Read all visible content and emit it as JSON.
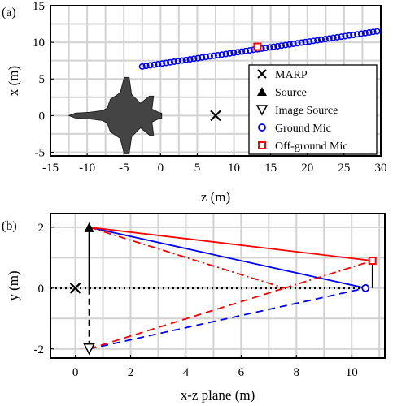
{
  "chart_data": [
    {
      "panel_label": "(a)",
      "type": "scatter",
      "xlabel": "z (m)",
      "ylabel": "x (m)",
      "xlim": [
        -15,
        30
      ],
      "ylim": [
        -5.5,
        15
      ],
      "xticks": [
        -15,
        -10,
        -5,
        0,
        5,
        10,
        15,
        20,
        25,
        30
      ],
      "yticks": [
        -5,
        0,
        5,
        10,
        15
      ],
      "grid": true,
      "legend_position": "lower-right",
      "series": [
        {
          "name": "MARP",
          "marker": "x",
          "color": "#000000",
          "x": [
            7.5
          ],
          "y": [
            0
          ]
        },
        {
          "name": "Source",
          "marker": "triangle-up",
          "color": "#000000",
          "x": [],
          "y": []
        },
        {
          "name": "Image Source",
          "marker": "triangle-down-open",
          "color": "#000000",
          "x": [],
          "y": []
        },
        {
          "name": "Ground Mic",
          "marker": "circle-open",
          "color": "#0000ff",
          "x_range": [
            -2.5,
            29.5
          ],
          "y_range": [
            6.7,
            11.5
          ],
          "count": 60
        },
        {
          "name": "Off-ground Mic",
          "marker": "square-open",
          "color": "#ff0000",
          "x": [
            13.2
          ],
          "y": [
            9.4
          ]
        }
      ],
      "aircraft_icon": "jet-silhouette"
    },
    {
      "panel_label": "(b)",
      "type": "line",
      "xlabel": "x-z plane (m)",
      "ylabel": "y (m)",
      "xlim": [
        -0.9,
        11.2
      ],
      "ylim": [
        -2.3,
        2.45
      ],
      "xticks": [
        0,
        2,
        4,
        6,
        8,
        10
      ],
      "yticks": [
        -2,
        0,
        2
      ],
      "grid": true,
      "points": {
        "marp": {
          "x": 0,
          "y": 0
        },
        "source": {
          "x": 0.5,
          "y": 2
        },
        "image_source": {
          "x": 0.5,
          "y": -2
        },
        "ground_mic": {
          "x": 10.5,
          "y": 0
        },
        "offground_mic": {
          "x": 10.75,
          "y": 0.9
        }
      },
      "ground_line": {
        "y": 0
      },
      "colors": {
        "ground": "#0000ff",
        "offground": "#ff0000",
        "black": "#000000"
      }
    }
  ]
}
